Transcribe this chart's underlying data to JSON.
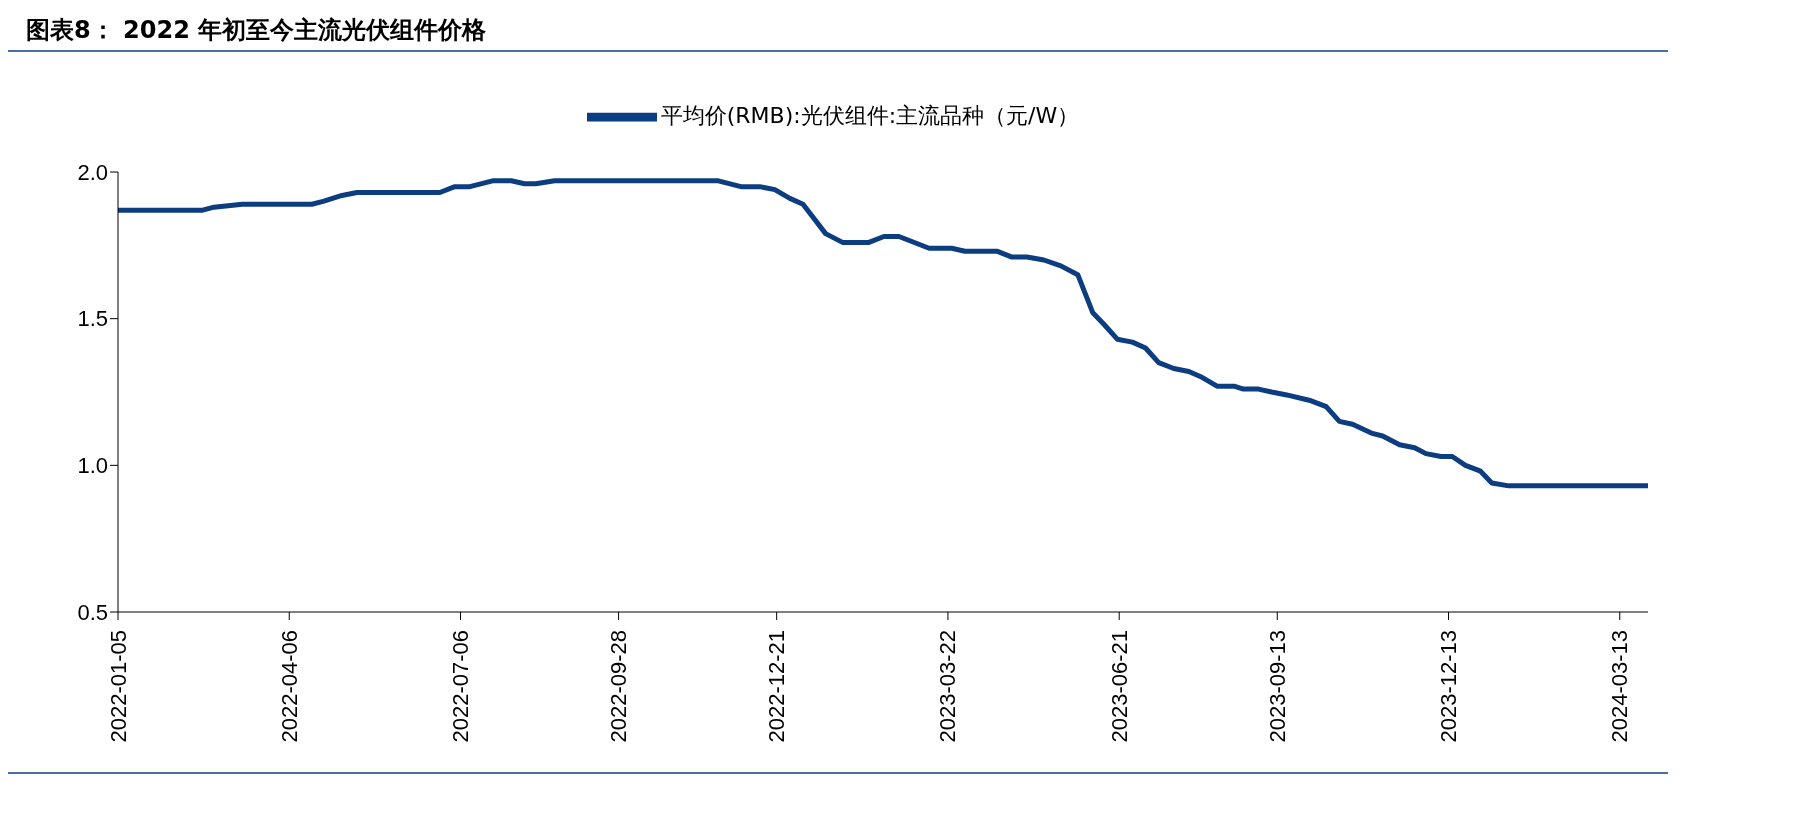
{
  "chart_data": {
    "type": "line",
    "title": "图表8： 2022 年初至今主流光伏组件价格",
    "x": [
      "2022-01-05",
      "2022-02-19",
      "2022-02-25",
      "2022-03-12",
      "2022-04-18",
      "2022-04-24",
      "2022-05-04",
      "2022-05-12",
      "2022-06-25",
      "2022-07-03",
      "2022-07-11",
      "2022-07-23",
      "2022-08-02",
      "2022-08-09",
      "2022-08-15",
      "2022-08-25",
      "2022-11-20",
      "2022-12-02",
      "2022-12-12",
      "2022-12-20",
      "2022-12-28",
      "2023-01-04",
      "2023-01-16",
      "2023-01-25",
      "2023-02-08",
      "2023-02-16",
      "2023-02-24",
      "2023-03-12",
      "2023-03-24",
      "2023-03-31",
      "2023-04-17",
      "2023-04-25",
      "2023-05-03",
      "2023-05-12",
      "2023-05-21",
      "2023-05-30",
      "2023-06-07",
      "2023-06-13",
      "2023-06-20",
      "2023-06-28",
      "2023-07-05",
      "2023-07-12",
      "2023-07-20",
      "2023-07-28",
      "2023-08-04",
      "2023-08-12",
      "2023-08-21",
      "2023-08-26",
      "2023-09-03",
      "2023-09-10",
      "2023-09-18",
      "2023-10-01",
      "2023-10-09",
      "2023-10-16",
      "2023-10-23",
      "2023-11-02",
      "2023-11-08",
      "2023-11-17",
      "2023-11-25",
      "2023-12-01",
      "2023-12-09",
      "2023-12-15",
      "2023-12-22",
      "2023-12-30",
      "2024-01-05",
      "2024-01-14",
      "2024-03-28"
    ],
    "series": [
      {
        "name": "平均价(RMB):光伏组件:主流品种（元/W）",
        "color": "#0b3d80",
        "values": [
          1.87,
          1.87,
          1.88,
          1.89,
          1.89,
          1.9,
          1.92,
          1.93,
          1.93,
          1.95,
          1.95,
          1.97,
          1.97,
          1.96,
          1.96,
          1.97,
          1.97,
          1.95,
          1.95,
          1.94,
          1.91,
          1.89,
          1.79,
          1.76,
          1.76,
          1.78,
          1.78,
          1.74,
          1.74,
          1.73,
          1.73,
          1.71,
          1.71,
          1.7,
          1.68,
          1.65,
          1.52,
          1.48,
          1.43,
          1.42,
          1.4,
          1.35,
          1.33,
          1.32,
          1.3,
          1.27,
          1.27,
          1.26,
          1.26,
          1.25,
          1.24,
          1.22,
          1.2,
          1.15,
          1.14,
          1.11,
          1.1,
          1.07,
          1.06,
          1.04,
          1.03,
          1.03,
          1.0,
          0.98,
          0.94,
          0.93,
          0.93
        ]
      }
    ],
    "xlim": [
      "2022-01-05",
      "2024-03-28"
    ],
    "xticks": [
      "2022-01-05",
      "2022-04-06",
      "2022-07-06",
      "2022-09-28",
      "2022-12-21",
      "2023-03-22",
      "2023-06-21",
      "2023-09-13",
      "2023-12-13",
      "2024-03-13"
    ],
    "ylim": [
      0.5,
      2.0
    ],
    "yticks": [
      {
        "value": 0.5,
        "label": "0.5"
      },
      {
        "value": 1.0,
        "label": "1.0"
      },
      {
        "value": 1.5,
        "label": "1.5"
      },
      {
        "value": 2.0,
        "label": "2.0"
      }
    ],
    "grid": false,
    "legend": "top",
    "marker": "none",
    "line_style": "solid"
  }
}
